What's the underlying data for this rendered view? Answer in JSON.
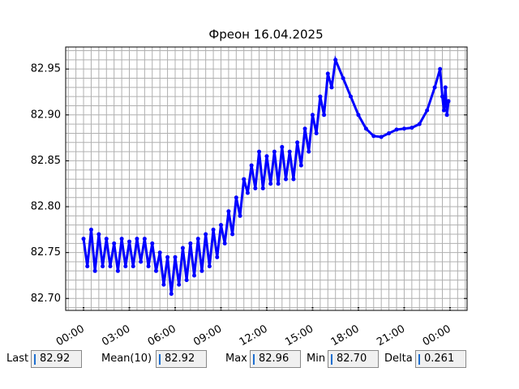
{
  "chart_data": {
    "type": "line",
    "title": "Фреон 16.04.2025",
    "x": [
      0,
      0.25,
      0.5,
      0.75,
      1,
      1.25,
      1.5,
      1.75,
      2,
      2.25,
      2.5,
      2.75,
      3,
      3.25,
      3.5,
      3.75,
      4,
      4.25,
      4.5,
      4.75,
      5,
      5.25,
      5.5,
      5.75,
      6,
      6.25,
      6.5,
      6.75,
      7,
      7.25,
      7.5,
      7.75,
      8,
      8.25,
      8.5,
      8.75,
      9,
      9.25,
      9.5,
      9.75,
      10,
      10.25,
      10.5,
      10.75,
      11,
      11.25,
      11.5,
      11.75,
      12,
      12.25,
      12.5,
      12.75,
      13,
      13.25,
      13.5,
      13.75,
      14,
      14.25,
      14.5,
      14.75,
      15,
      15.25,
      15.5,
      15.75,
      16,
      16.25,
      16.5,
      17,
      17.5,
      18,
      18.5,
      19,
      19.5,
      20,
      20.5,
      21,
      21.5,
      22,
      22.5,
      23,
      23.35,
      23.5,
      23.6,
      23.7,
      23.8,
      23.9
    ],
    "series": [
      {
        "color": "#0000ff",
        "values": [
          82.765,
          82.735,
          82.775,
          82.73,
          82.77,
          82.735,
          82.765,
          82.735,
          82.76,
          82.73,
          82.765,
          82.735,
          82.762,
          82.735,
          82.765,
          82.74,
          82.765,
          82.735,
          82.76,
          82.73,
          82.75,
          82.715,
          82.745,
          82.705,
          82.745,
          82.715,
          82.755,
          82.72,
          82.76,
          82.725,
          82.765,
          82.73,
          82.77,
          82.735,
          82.775,
          82.745,
          82.78,
          82.76,
          82.795,
          82.77,
          82.81,
          82.79,
          82.83,
          82.815,
          82.845,
          82.82,
          82.86,
          82.82,
          82.855,
          82.825,
          82.86,
          82.825,
          82.865,
          82.83,
          82.86,
          82.83,
          82.87,
          82.845,
          82.885,
          82.86,
          82.9,
          82.88,
          82.92,
          82.9,
          82.945,
          82.93,
          82.96,
          82.94,
          82.92,
          82.9,
          82.885,
          82.877,
          82.876,
          82.88,
          82.884,
          82.885,
          82.886,
          82.89,
          82.905,
          82.93,
          82.95,
          82.92,
          82.905,
          82.93,
          82.9,
          82.915
        ]
      }
    ],
    "xlim": [
      -1.17,
      25.12
    ],
    "ylim": [
      82.687,
      82.974
    ],
    "xticks": [
      {
        "value": 0,
        "label": "00:00"
      },
      {
        "value": 3,
        "label": "03:00"
      },
      {
        "value": 6,
        "label": "06:00"
      },
      {
        "value": 9,
        "label": "09:00"
      },
      {
        "value": 12,
        "label": "12:00"
      },
      {
        "value": 15,
        "label": "15:00"
      },
      {
        "value": 18,
        "label": "18:00"
      },
      {
        "value": 21,
        "label": "21:00"
      },
      {
        "value": 24,
        "label": "00:00"
      }
    ],
    "yticks": [
      {
        "value": 82.7,
        "label": "82.70"
      },
      82.75,
      {
        "value": 82.8,
        "label": "82.80"
      },
      82.85,
      {
        "value": 82.9,
        "label": "82.90"
      },
      82.95
    ],
    "grid": true,
    "xminor": 0.5,
    "yminor": 0.01
  },
  "fields": [
    {
      "label": "Last",
      "value": "82.92"
    },
    {
      "label": "Mean(10)",
      "value": "82.92"
    },
    {
      "label": "Max",
      "value": "82.96"
    },
    {
      "label": "Min",
      "value": "82.70"
    },
    {
      "label": "Delta",
      "value": "0.261"
    }
  ]
}
